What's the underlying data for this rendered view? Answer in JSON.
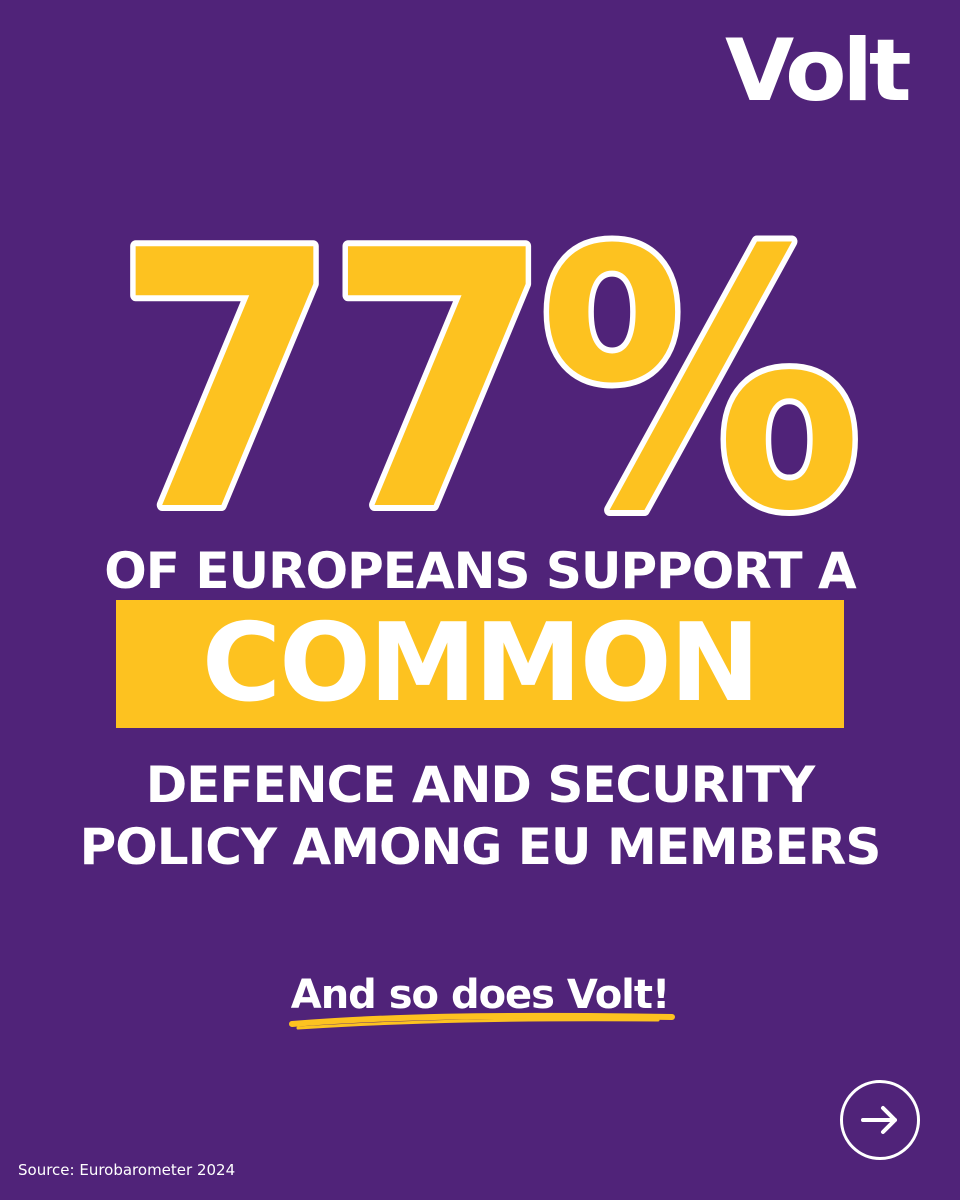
{
  "brand": {
    "logo_text": "Volt"
  },
  "headline": {
    "stat": "77%",
    "line_1": "OF EUROPEANS SUPPORT A",
    "highlight": "COMMON",
    "line_3": "DEFENCE AND SECURITY",
    "line_4": "POLICY AMONG EU MEMBERS"
  },
  "tagline": "And so does Volt!",
  "footer": {
    "source": "Source: Eurobarometer 2024"
  },
  "navigation": {
    "next_icon": "arrow-right-icon"
  },
  "colors": {
    "background": "#502379",
    "accent_yellow": "#fdc220",
    "text": "#ffffff"
  }
}
